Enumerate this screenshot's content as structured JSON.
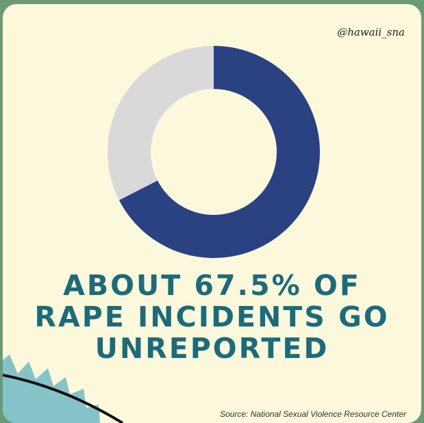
{
  "handle": "@hawaii_sna",
  "headline": {
    "line1": "ABOUT 67.5% OF",
    "line2": "RAPE INCIDENTS GO",
    "line3": "UNREPORTED"
  },
  "source": "Source: National Sexual Violence Resource Center",
  "colors": {
    "reported_slice": "#d9d9d9",
    "unreported_slice": "#2b4282",
    "headline": "#1c6b7a",
    "card": "#fbf8dc",
    "frame": "#6b9a74"
  },
  "chart_data": {
    "type": "pie",
    "donut": true,
    "title": "",
    "slices": [
      {
        "label": "",
        "value": 67.5,
        "color": "#2b4282"
      },
      {
        "label": "",
        "value": 32.5,
        "color": "#d9d9d9"
      }
    ]
  }
}
